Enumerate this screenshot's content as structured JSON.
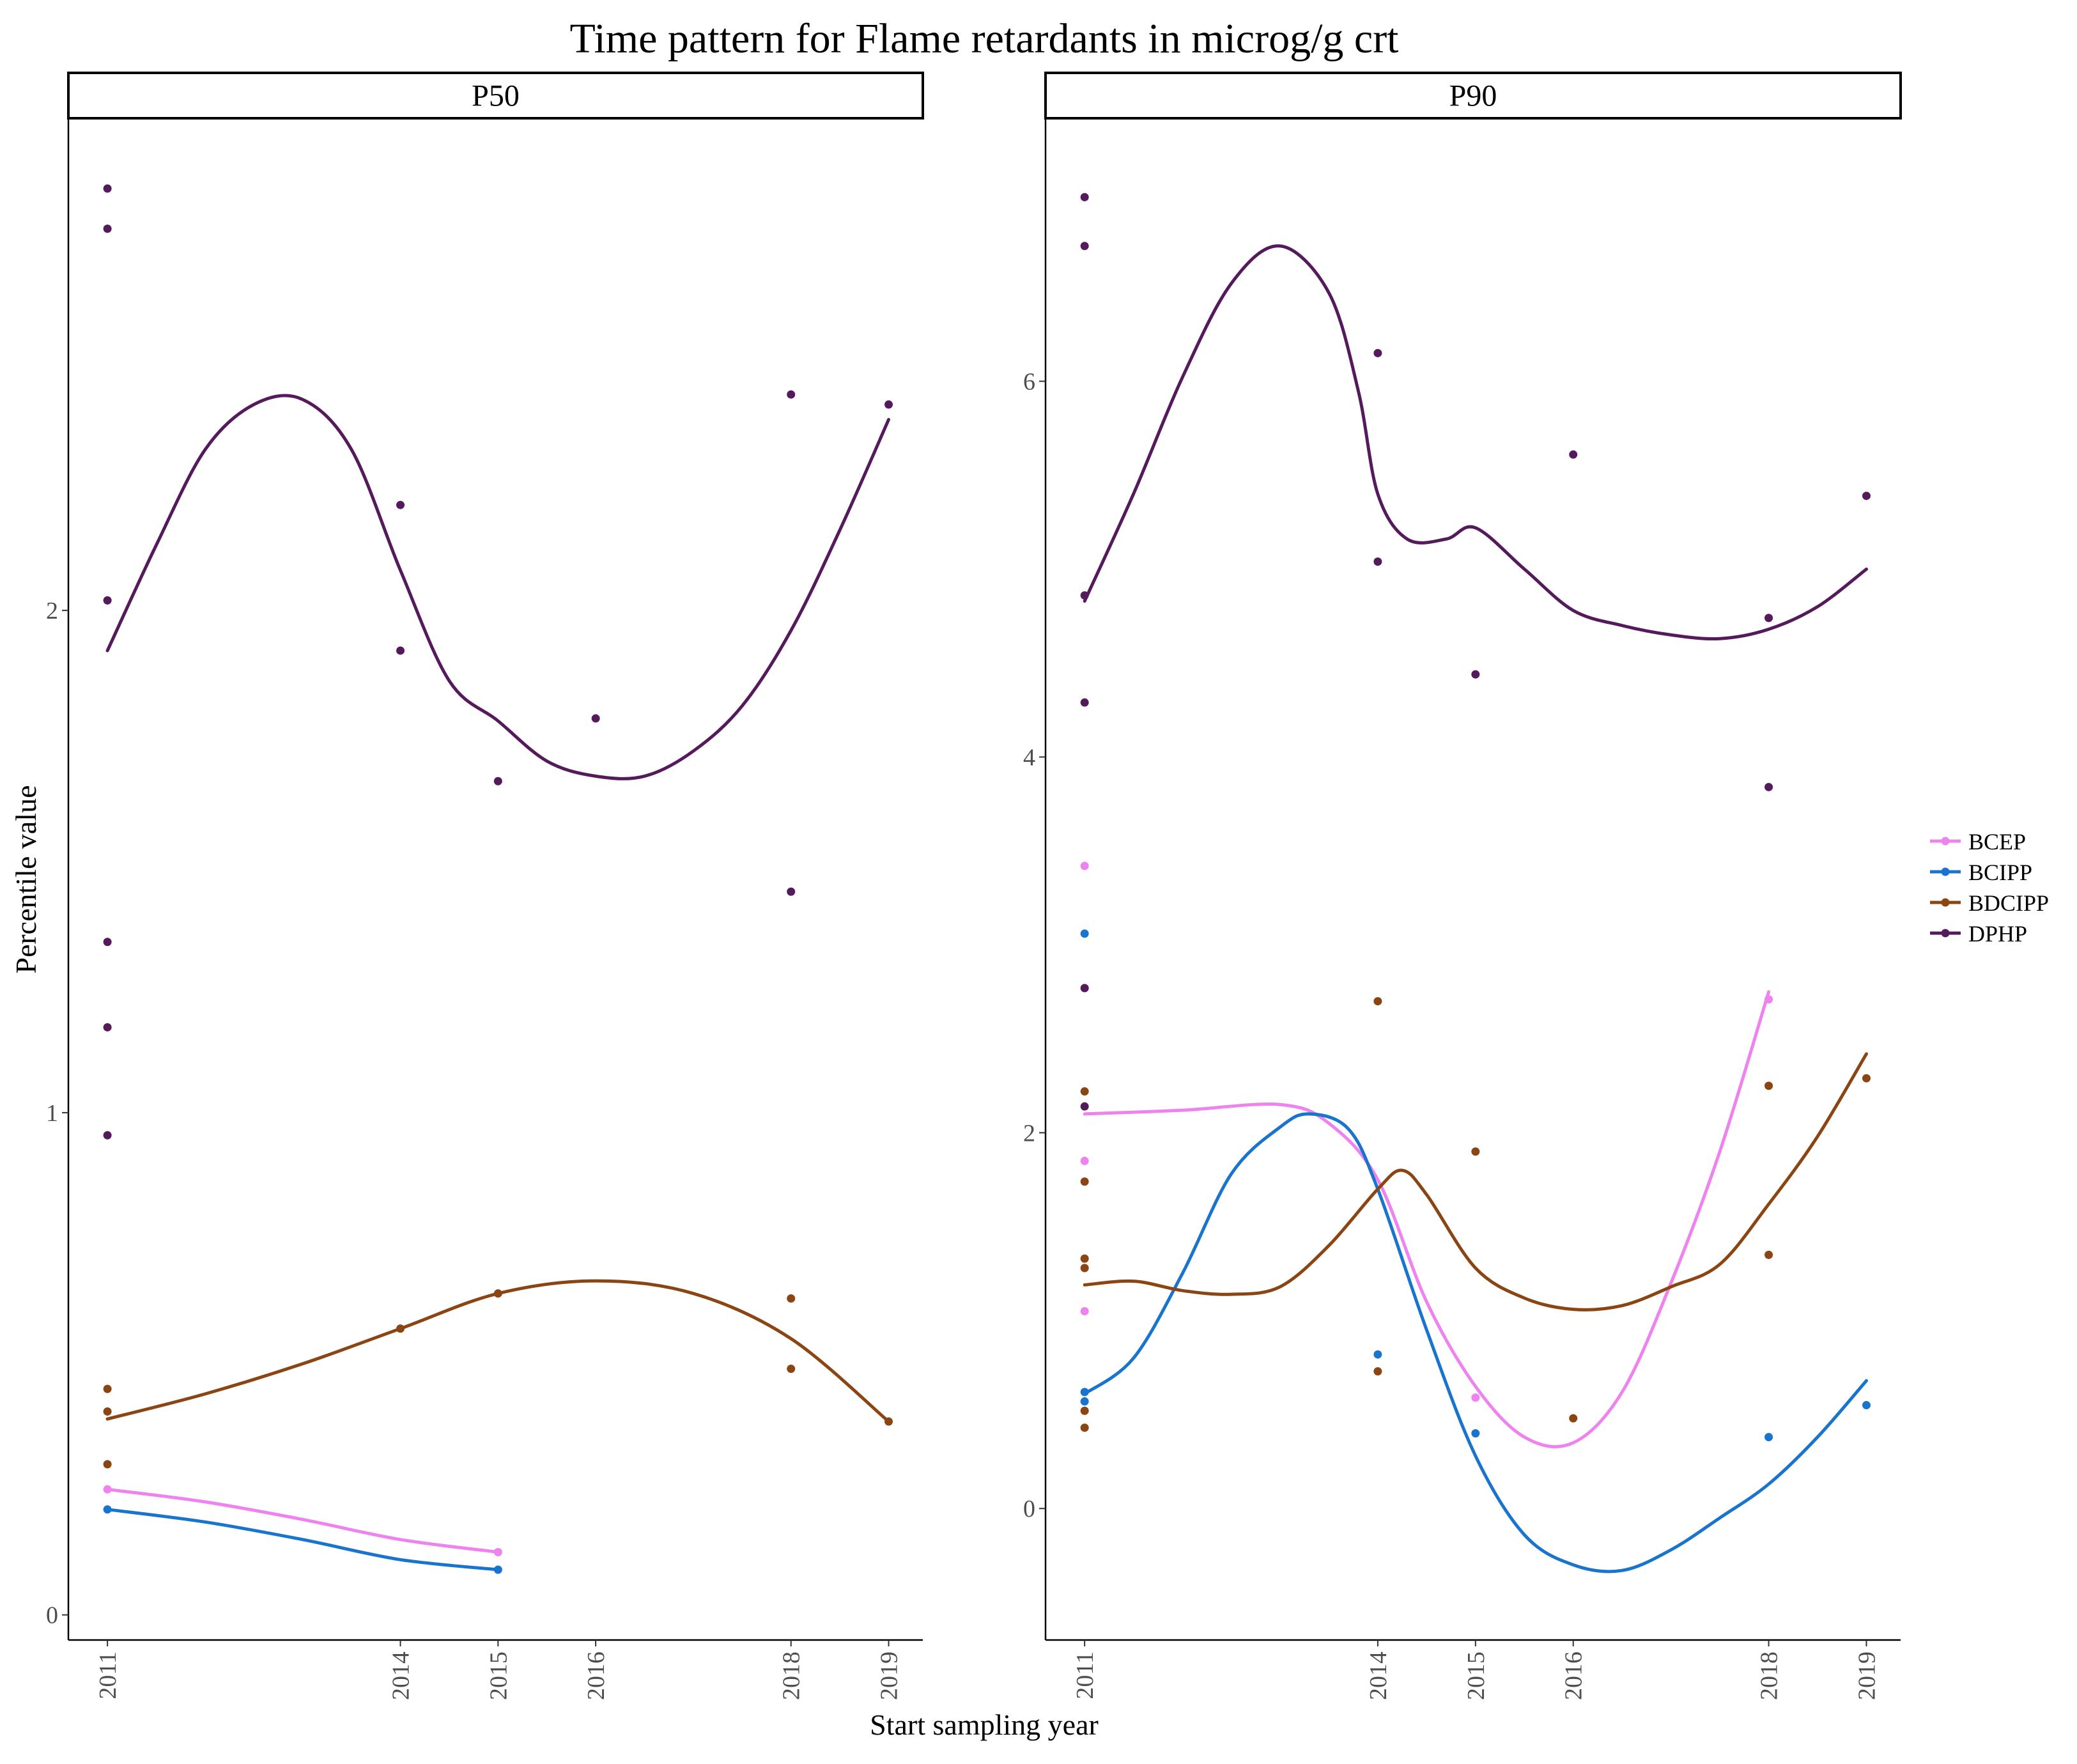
{
  "chart_data": {
    "type": "scatter",
    "title": "Time pattern for Flame retardants in microg/g crt",
    "xlabel": "Start sampling year",
    "ylabel": "Percentile value",
    "x_ticks": [
      2011,
      2014,
      2015,
      2016,
      2018,
      2019
    ],
    "legend": {
      "placement": "right",
      "entries": [
        {
          "name": "BCEP",
          "color": "#EE82EE"
        },
        {
          "name": "BCIPP",
          "color": "#1874CD"
        },
        {
          "name": "BDCIPP",
          "color": "#8B4513"
        },
        {
          "name": "DPHP",
          "color": "#551A5B"
        }
      ]
    },
    "panels": [
      {
        "strip": "P50",
        "xlim": [
          2010.6,
          2019.35
        ],
        "ylim": [
          -0.05,
          2.98
        ],
        "y_ticks": [
          0,
          1,
          2
        ],
        "series": [
          {
            "name": "BCEP",
            "points": [
              [
                2011,
                0.25
              ],
              [
                2015,
                0.125
              ]
            ],
            "trend": [
              [
                2011,
                0.25
              ],
              [
                2012,
                0.225
              ],
              [
                2013,
                0.19
              ],
              [
                2014,
                0.15
              ],
              [
                2015,
                0.125
              ]
            ]
          },
          {
            "name": "BCIPP",
            "points": [
              [
                2011,
                0.21
              ],
              [
                2015,
                0.09
              ]
            ],
            "trend": [
              [
                2011,
                0.21
              ],
              [
                2012,
                0.185
              ],
              [
                2013,
                0.15
              ],
              [
                2014,
                0.11
              ],
              [
                2015,
                0.09
              ]
            ]
          },
          {
            "name": "BDCIPP",
            "points": [
              [
                2011,
                0.45
              ],
              [
                2011,
                0.405
              ],
              [
                2011,
                0.3
              ],
              [
                2014,
                0.57
              ],
              [
                2015,
                0.64
              ],
              [
                2018,
                0.63
              ],
              [
                2018,
                0.49
              ],
              [
                2019,
                0.385
              ]
            ],
            "trend": [
              [
                2011,
                0.39
              ],
              [
                2012,
                0.44
              ],
              [
                2013,
                0.5
              ],
              [
                2014,
                0.57
              ],
              [
                2015,
                0.64
              ],
              [
                2016,
                0.665
              ],
              [
                2017,
                0.64
              ],
              [
                2018,
                0.55
              ],
              [
                2019,
                0.385
              ]
            ]
          },
          {
            "name": "DPHP",
            "points": [
              [
                2011,
                2.84
              ],
              [
                2011,
                2.76
              ],
              [
                2011,
                2.02
              ],
              [
                2011,
                1.34
              ],
              [
                2011,
                1.17
              ],
              [
                2011,
                0.955
              ],
              [
                2014,
                2.21
              ],
              [
                2014,
                1.92
              ],
              [
                2015,
                1.66
              ],
              [
                2016,
                1.785
              ],
              [
                2018,
                2.43
              ],
              [
                2018,
                1.44
              ],
              [
                2019,
                2.41
              ]
            ],
            "trend": [
              [
                2011,
                1.92
              ],
              [
                2011.5,
                2.13
              ],
              [
                2012,
                2.32
              ],
              [
                2012.5,
                2.41
              ],
              [
                2013,
                2.42
              ],
              [
                2013.5,
                2.32
              ],
              [
                2014,
                2.08
              ],
              [
                2014.5,
                1.86
              ],
              [
                2015,
                1.78
              ],
              [
                2015.5,
                1.7
              ],
              [
                2016,
                1.67
              ],
              [
                2016.5,
                1.67
              ],
              [
                2017,
                1.72
              ],
              [
                2017.5,
                1.81
              ],
              [
                2018,
                1.96
              ],
              [
                2018.5,
                2.16
              ],
              [
                2019,
                2.38
              ]
            ]
          }
        ]
      },
      {
        "strip": "P90",
        "xlim": [
          2010.6,
          2019.35
        ],
        "ylim": [
          -0.7,
          7.4
        ],
        "y_ticks": [
          0,
          2,
          4,
          6
        ],
        "series": [
          {
            "name": "BCEP",
            "points": [
              [
                2011,
                3.42
              ],
              [
                2011,
                1.85
              ],
              [
                2011,
                1.05
              ],
              [
                2015,
                0.59
              ],
              [
                2018,
                2.71
              ]
            ],
            "trend": [
              [
                2011,
                2.1
              ],
              [
                2012,
                2.12
              ],
              [
                2013,
                2.15
              ],
              [
                2013.5,
                2.05
              ],
              [
                2014,
                1.75
              ],
              [
                2014.5,
                1.1
              ],
              [
                2015,
                0.65
              ],
              [
                2015.5,
                0.38
              ],
              [
                2016,
                0.35
              ],
              [
                2016.5,
                0.62
              ],
              [
                2017,
                1.2
              ],
              [
                2017.5,
                1.9
              ],
              [
                2018,
                2.75
              ]
            ]
          },
          {
            "name": "BCIPP",
            "points": [
              [
                2011,
                3.06
              ],
              [
                2011,
                0.62
              ],
              [
                2011,
                0.57
              ],
              [
                2014,
                0.82
              ],
              [
                2015,
                0.4
              ],
              [
                2018,
                0.38
              ],
              [
                2019,
                0.55
              ]
            ],
            "trend": [
              [
                2011,
                0.61
              ],
              [
                2011.5,
                0.8
              ],
              [
                2012,
                1.25
              ],
              [
                2012.5,
                1.78
              ],
              [
                2013,
                2.03
              ],
              [
                2013.3,
                2.1
              ],
              [
                2013.7,
                2.02
              ],
              [
                2014,
                1.7
              ],
              [
                2014.5,
                0.95
              ],
              [
                2015,
                0.28
              ],
              [
                2015.5,
                -0.14
              ],
              [
                2016,
                -0.3
              ],
              [
                2016.5,
                -0.33
              ],
              [
                2017,
                -0.22
              ],
              [
                2017.5,
                -0.05
              ],
              [
                2018,
                0.13
              ],
              [
                2018.5,
                0.38
              ],
              [
                2019,
                0.68
              ]
            ]
          },
          {
            "name": "BDCIPP",
            "points": [
              [
                2011,
                2.22
              ],
              [
                2011,
                1.74
              ],
              [
                2011,
                1.33
              ],
              [
                2011,
                1.28
              ],
              [
                2011,
                0.52
              ],
              [
                2011,
                0.43
              ],
              [
                2014,
                2.7
              ],
              [
                2014,
                0.73
              ],
              [
                2015,
                1.9
              ],
              [
                2016,
                0.48
              ],
              [
                2018,
                2.25
              ],
              [
                2018,
                1.35
              ],
              [
                2019,
                2.29
              ]
            ],
            "trend": [
              [
                2011,
                1.19
              ],
              [
                2011.5,
                1.21
              ],
              [
                2012,
                1.16
              ],
              [
                2012.5,
                1.14
              ],
              [
                2013,
                1.18
              ],
              [
                2013.5,
                1.4
              ],
              [
                2014,
                1.7
              ],
              [
                2014.25,
                1.8
              ],
              [
                2014.5,
                1.67
              ],
              [
                2015,
                1.28
              ],
              [
                2015.5,
                1.12
              ],
              [
                2016,
                1.06
              ],
              [
                2016.5,
                1.08
              ],
              [
                2017,
                1.18
              ],
              [
                2017.5,
                1.3
              ],
              [
                2018,
                1.62
              ],
              [
                2018.5,
                1.98
              ],
              [
                2019,
                2.42
              ]
            ]
          },
          {
            "name": "DPHP",
            "points": [
              [
                2011,
                6.98
              ],
              [
                2011,
                6.72
              ],
              [
                2011,
                4.86
              ],
              [
                2011,
                4.29
              ],
              [
                2011,
                2.77
              ],
              [
                2011,
                2.14
              ],
              [
                2014,
                6.15
              ],
              [
                2014,
                5.04
              ],
              [
                2015,
                4.44
              ],
              [
                2016,
                5.61
              ],
              [
                2018,
                3.84
              ],
              [
                2018,
                4.74
              ],
              [
                2019,
                5.39
              ]
            ],
            "trend": [
              [
                2011,
                4.83
              ],
              [
                2011.5,
                5.4
              ],
              [
                2012,
                6.02
              ],
              [
                2012.5,
                6.52
              ],
              [
                2013,
                6.72
              ],
              [
                2013.5,
                6.47
              ],
              [
                2013.8,
                5.95
              ],
              [
                2014,
                5.4
              ],
              [
                2014.3,
                5.16
              ],
              [
                2014.7,
                5.16
              ],
              [
                2015,
                5.22
              ],
              [
                2015.5,
                5.0
              ],
              [
                2016,
                4.78
              ],
              [
                2016.5,
                4.7
              ],
              [
                2017,
                4.65
              ],
              [
                2017.5,
                4.63
              ],
              [
                2018,
                4.68
              ],
              [
                2018.5,
                4.8
              ],
              [
                2019,
                5.0
              ]
            ]
          }
        ]
      }
    ]
  }
}
